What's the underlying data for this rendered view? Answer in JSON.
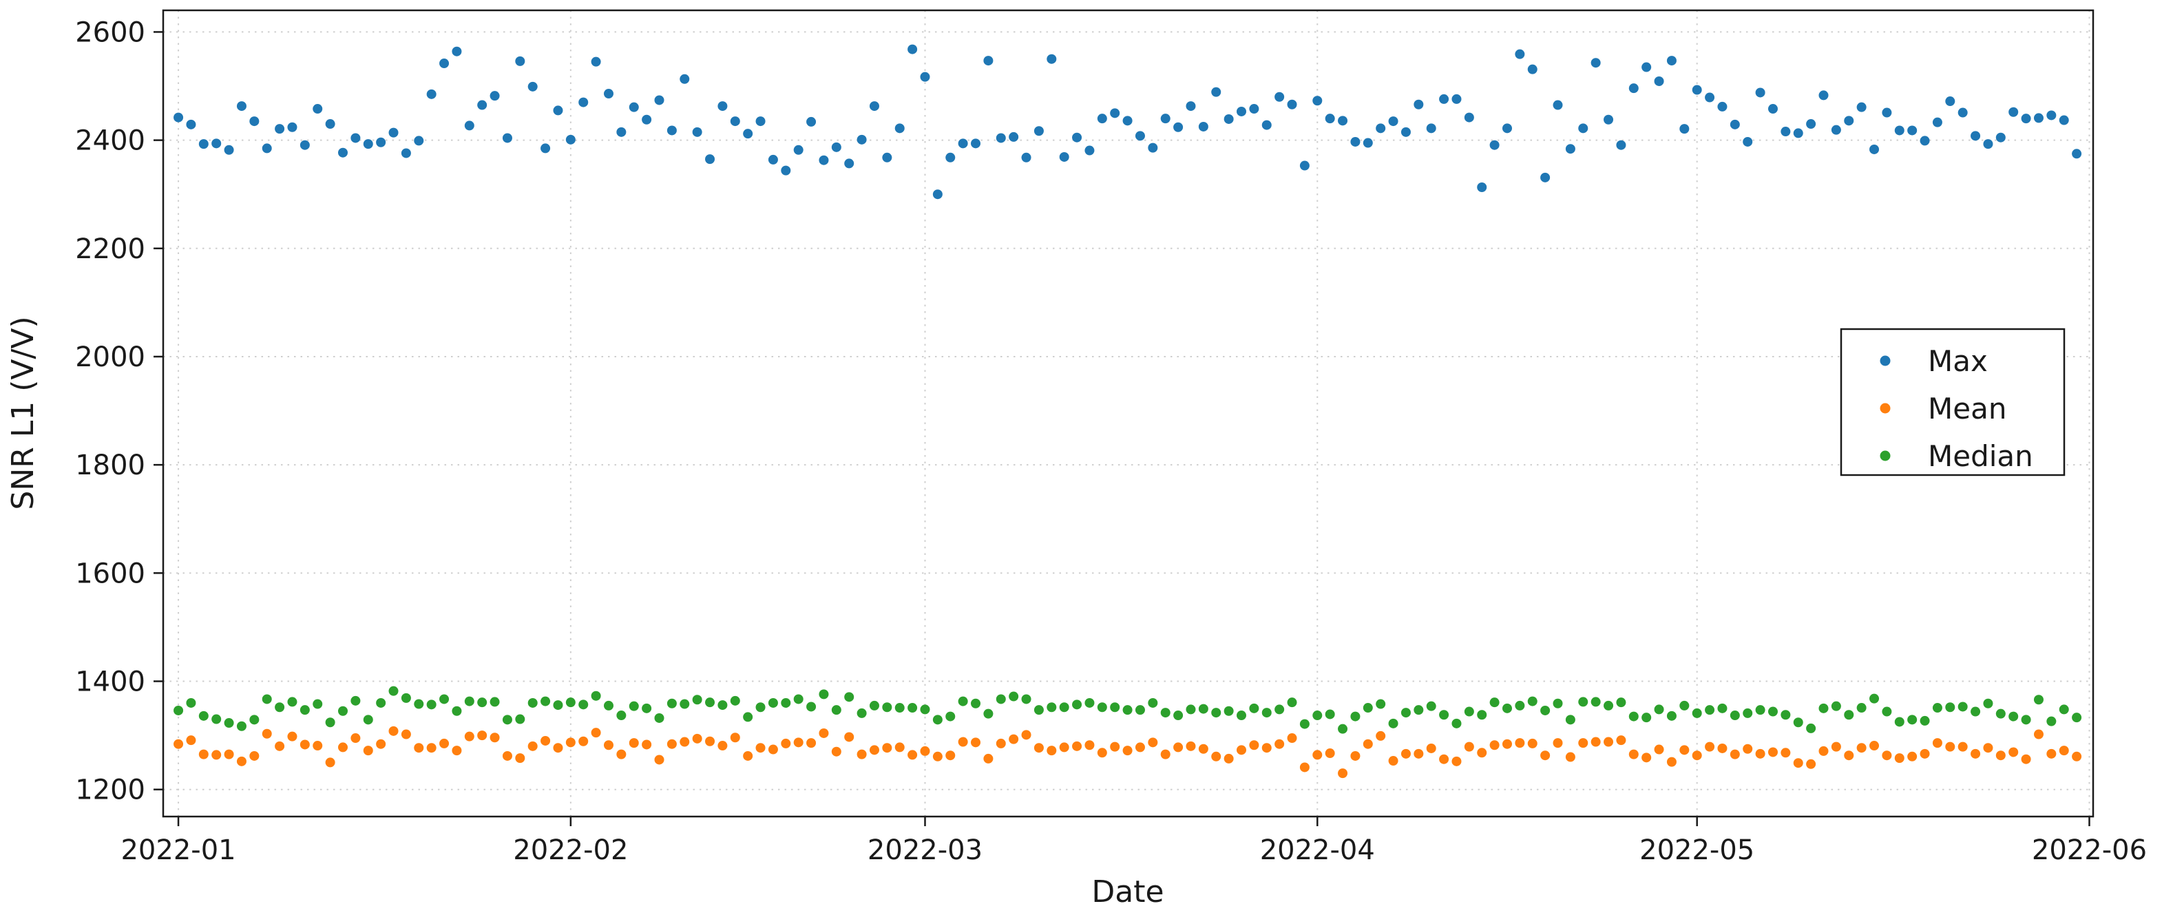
{
  "figure": {
    "background": "#ffffff",
    "spine_color": "#1a1a1a",
    "grid_color": "#cfcfcf",
    "text_color": "#1a1a1a"
  },
  "chart_data": {
    "type": "scatter",
    "title": "",
    "xlabel": "Date",
    "ylabel": "SNR L1 (V/V)",
    "grid": true,
    "legend_position": "right-center",
    "x_start_date": "2022-01-01",
    "x_frequency": "daily",
    "x_tick_days": [
      0,
      31,
      59,
      90,
      120,
      151
    ],
    "x_tick_labels": [
      "2022-01",
      "2022-02",
      "2022-03",
      "2022-04",
      "2022-05",
      "2022-06"
    ],
    "xlim_days": [
      -1.2,
      151.3
    ],
    "y_ticks": [
      1200,
      1400,
      1600,
      1800,
      2000,
      2200,
      2400,
      2600
    ],
    "ylim": [
      1150,
      2640
    ],
    "series": [
      {
        "name": "Max",
        "color": "#1f77b4",
        "values": [
          2442,
          2429,
          2393,
          2394,
          2382,
          2463,
          2435,
          2385,
          2421,
          2424,
          2391,
          2458,
          2430,
          2377,
          2404,
          2393,
          2396,
          2414,
          2376,
          2399,
          2485,
          2542,
          2564,
          2427,
          2465,
          2482,
          2404,
          2546,
          2499,
          2385,
          2455,
          2401,
          2470,
          2545,
          2486,
          2415,
          2461,
          2438,
          2474,
          2418,
          2513,
          2415,
          2365,
          2463,
          2435,
          2412,
          2435,
          2364,
          2344,
          2382,
          2434,
          2363,
          2387,
          2357,
          2401,
          2463,
          2368,
          2422,
          2568,
          2517,
          2300,
          2368,
          2394,
          2394,
          2547,
          2404,
          2406,
          2368,
          2417,
          2550,
          2369,
          2405,
          2381,
          2440,
          2450,
          2436,
          2408,
          2386,
          2440,
          2424,
          2463,
          2425,
          2489,
          2439,
          2453,
          2458,
          2428,
          2480,
          2466,
          2353,
          2473,
          2440,
          2436,
          2397,
          2395,
          2422,
          2435,
          2415,
          2466,
          2422,
          2476,
          2476,
          2442,
          2313,
          2391,
          2422,
          2559,
          2531,
          2331,
          2465,
          2384,
          2422,
          2543,
          2438,
          2391,
          2496,
          2535,
          2509,
          2547,
          2421,
          2493,
          2479,
          2462,
          2429,
          2397,
          2488,
          2458,
          2416,
          2413,
          2430,
          2483,
          2419,
          2436,
          2461,
          2383,
          2451,
          2418,
          2418,
          2399,
          2433,
          2472,
          2451,
          2408,
          2393,
          2405,
          2452,
          2440,
          2441,
          2446,
          2437,
          2375
        ]
      },
      {
        "name": "Mean",
        "color": "#ff7f0e",
        "values": [
          1284,
          1291,
          1265,
          1264,
          1265,
          1252,
          1262,
          1303,
          1280,
          1298,
          1283,
          1281,
          1250,
          1278,
          1295,
          1272,
          1284,
          1308,
          1302,
          1277,
          1277,
          1285,
          1272,
          1298,
          1300,
          1296,
          1262,
          1258,
          1280,
          1290,
          1277,
          1287,
          1289,
          1305,
          1282,
          1265,
          1286,
          1283,
          1255,
          1284,
          1288,
          1294,
          1289,
          1281,
          1296,
          1262,
          1277,
          1274,
          1285,
          1287,
          1286,
          1304,
          1270,
          1297,
          1265,
          1273,
          1277,
          1278,
          1264,
          1271,
          1261,
          1263,
          1288,
          1287,
          1257,
          1285,
          1293,
          1301,
          1277,
          1272,
          1278,
          1280,
          1282,
          1268,
          1279,
          1272,
          1278,
          1287,
          1265,
          1278,
          1280,
          1275,
          1261,
          1257,
          1273,
          1282,
          1277,
          1284,
          1295,
          1241,
          1264,
          1267,
          1230,
          1262,
          1284,
          1299,
          1253,
          1266,
          1266,
          1276,
          1256,
          1252,
          1279,
          1268,
          1282,
          1284,
          1286,
          1285,
          1263,
          1286,
          1260,
          1286,
          1288,
          1288,
          1291,
          1265,
          1259,
          1274,
          1251,
          1273,
          1263,
          1279,
          1276,
          1265,
          1275,
          1266,
          1269,
          1268,
          1249,
          1247,
          1271,
          1279,
          1263,
          1277,
          1281,
          1263,
          1258,
          1261,
          1266,
          1286,
          1279,
          1279,
          1266,
          1277,
          1263,
          1269,
          1256,
          1302,
          1266,
          1272,
          1261
        ]
      },
      {
        "name": "Median",
        "color": "#2ca02c",
        "values": [
          1346,
          1360,
          1336,
          1330,
          1323,
          1317,
          1329,
          1367,
          1352,
          1362,
          1347,
          1358,
          1324,
          1345,
          1364,
          1329,
          1360,
          1382,
          1369,
          1358,
          1357,
          1367,
          1345,
          1363,
          1361,
          1362,
          1329,
          1330,
          1360,
          1363,
          1356,
          1361,
          1357,
          1373,
          1355,
          1337,
          1354,
          1350,
          1332,
          1359,
          1358,
          1366,
          1361,
          1356,
          1364,
          1334,
          1352,
          1360,
          1360,
          1367,
          1353,
          1376,
          1347,
          1371,
          1341,
          1355,
          1352,
          1351,
          1351,
          1348,
          1329,
          1335,
          1363,
          1359,
          1340,
          1367,
          1372,
          1367,
          1347,
          1352,
          1352,
          1357,
          1360,
          1352,
          1352,
          1347,
          1347,
          1360,
          1342,
          1337,
          1348,
          1349,
          1342,
          1345,
          1337,
          1350,
          1342,
          1348,
          1361,
          1321,
          1337,
          1339,
          1312,
          1335,
          1351,
          1358,
          1322,
          1342,
          1347,
          1354,
          1338,
          1322,
          1344,
          1338,
          1361,
          1350,
          1355,
          1363,
          1346,
          1359,
          1329,
          1362,
          1362,
          1355,
          1361,
          1335,
          1333,
          1348,
          1336,
          1355,
          1341,
          1347,
          1350,
          1337,
          1341,
          1347,
          1344,
          1338,
          1324,
          1313,
          1350,
          1354,
          1338,
          1351,
          1368,
          1344,
          1325,
          1329,
          1327,
          1351,
          1352,
          1353,
          1344,
          1359,
          1340,
          1335,
          1329,
          1366,
          1326,
          1348,
          1333
        ]
      }
    ]
  }
}
